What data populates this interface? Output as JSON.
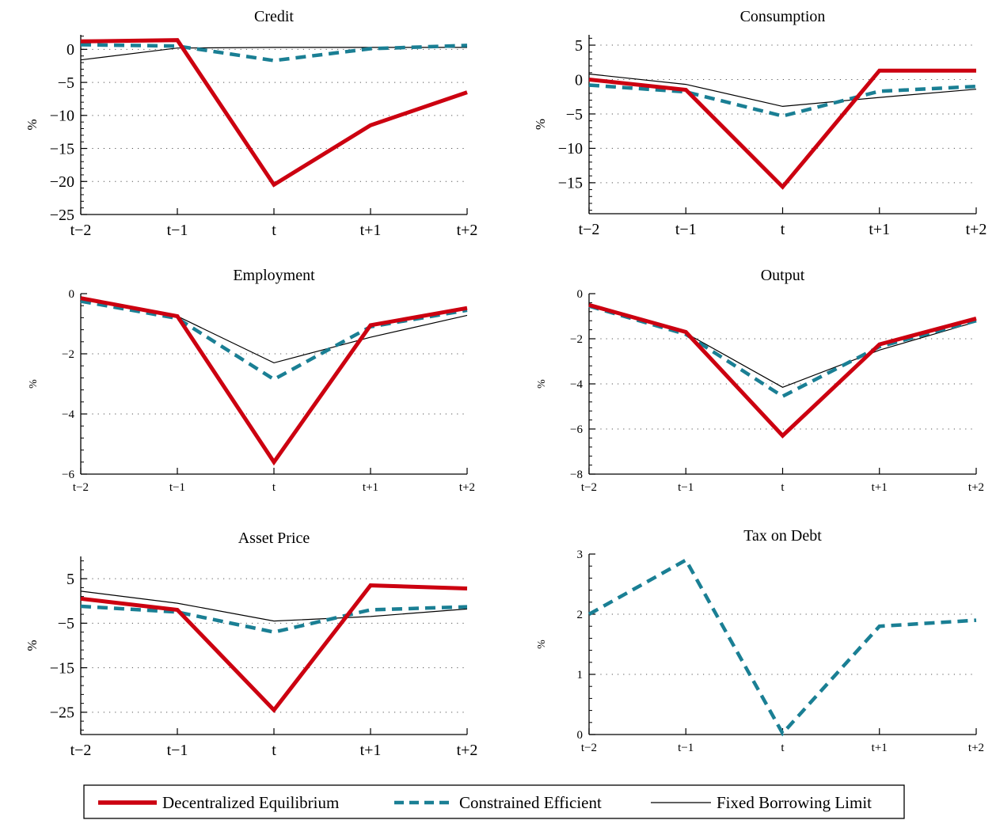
{
  "colors": {
    "decentralized": "#cc0010",
    "constrained": "#1a7f94",
    "fixed": "#000000",
    "grid": "#555555"
  },
  "legend": {
    "items": [
      {
        "label": "Decentralized Equilibrium",
        "series": "decentralized"
      },
      {
        "label": "Constrained Efficient",
        "series": "constrained"
      },
      {
        "label": "Fixed Borrowing Limit",
        "series": "fixed"
      }
    ]
  },
  "chart_data": [
    {
      "type": "line",
      "title": "Credit",
      "ylabel": "%",
      "categories": [
        "t−2",
        "t−1",
        "t",
        "t+1",
        "t+2"
      ],
      "ylim": [
        -25,
        2.2
      ],
      "yticks": [
        0,
        -5,
        -10,
        -15,
        -20,
        -25
      ],
      "yticklabels": [
        "0",
        "−5",
        "−10",
        "−15",
        "−20",
        "−25"
      ],
      "grid": "horizontal dotted",
      "series": [
        {
          "key": "decentralized",
          "values": [
            1.2,
            1.4,
            -20.5,
            -11.5,
            -6.5
          ]
        },
        {
          "key": "constrained",
          "values": [
            0.7,
            0.5,
            -1.7,
            0.1,
            0.6
          ]
        },
        {
          "key": "fixed",
          "values": [
            -1.6,
            0.2,
            0.3,
            0.3,
            0.3
          ]
        }
      ]
    },
    {
      "type": "line",
      "title": "Consumption",
      "ylabel": "%",
      "categories": [
        "t−2",
        "t−1",
        "t",
        "t+1",
        "t+2"
      ],
      "ylim": [
        -19.5,
        6.5
      ],
      "yticks": [
        5,
        0,
        -5,
        -10,
        -15
      ],
      "yticklabels": [
        "5",
        "0",
        "−5",
        "−10",
        "−15"
      ],
      "grid": "horizontal dotted",
      "series": [
        {
          "key": "decentralized",
          "values": [
            0,
            -1.5,
            -15.6,
            1.3,
            1.3
          ]
        },
        {
          "key": "constrained",
          "values": [
            -0.8,
            -1.8,
            -5.3,
            -1.7,
            -1.0
          ]
        },
        {
          "key": "fixed",
          "values": [
            0.8,
            -0.7,
            -3.9,
            -2.6,
            -1.4
          ]
        }
      ]
    },
    {
      "type": "line",
      "title": "Employment",
      "ylabel": "%",
      "categories": [
        "t−2",
        "t−1",
        "t",
        "t+1",
        "t+2"
      ],
      "ylim": [
        -6,
        0
      ],
      "yticks": [
        0,
        -2,
        -4,
        -6
      ],
      "yticklabels": [
        "0",
        "−2",
        "−4",
        "−6"
      ],
      "grid": "horizontal dotted",
      "series": [
        {
          "key": "decentralized",
          "values": [
            -0.15,
            -0.75,
            -5.6,
            -1.05,
            -0.48
          ]
        },
        {
          "key": "constrained",
          "values": [
            -0.25,
            -0.82,
            -2.85,
            -1.1,
            -0.55
          ]
        },
        {
          "key": "fixed",
          "values": [
            -0.2,
            -0.75,
            -2.3,
            -1.45,
            -0.72
          ]
        }
      ]
    },
    {
      "type": "line",
      "title": "Output",
      "ylabel": "%",
      "categories": [
        "t−2",
        "t−1",
        "t",
        "t+1",
        "t+2"
      ],
      "ylim": [
        -8,
        0
      ],
      "yticks": [
        0,
        -2,
        -4,
        -6,
        -8
      ],
      "yticklabels": [
        "0",
        "−2",
        "−4",
        "−6",
        "−8"
      ],
      "grid": "horizontal dotted",
      "series": [
        {
          "key": "decentralized",
          "values": [
            -0.5,
            -1.7,
            -6.3,
            -2.25,
            -1.1
          ]
        },
        {
          "key": "constrained",
          "values": [
            -0.55,
            -1.8,
            -4.55,
            -2.35,
            -1.2
          ]
        },
        {
          "key": "fixed",
          "values": [
            -0.5,
            -1.75,
            -4.15,
            -2.5,
            -1.25
          ]
        }
      ]
    },
    {
      "type": "line",
      "title": "Asset Price",
      "ylabel": "%",
      "categories": [
        "t−2",
        "t−1",
        "t",
        "t+1",
        "t+2"
      ],
      "ylim": [
        -30,
        10
      ],
      "yticks": [
        5,
        -5,
        -15,
        -25
      ],
      "yticklabels": [
        "5",
        "−5",
        "−15",
        "−25"
      ],
      "grid": "horizontal dotted",
      "series": [
        {
          "key": "decentralized",
          "values": [
            0.5,
            -2,
            -24.5,
            3.5,
            2.8
          ]
        },
        {
          "key": "constrained",
          "values": [
            -1.2,
            -2.5,
            -7,
            -2,
            -1.3
          ]
        },
        {
          "key": "fixed",
          "values": [
            2.2,
            -0.5,
            -4.5,
            -3.5,
            -1.8
          ]
        }
      ]
    },
    {
      "type": "line",
      "title": "Tax on Debt",
      "ylabel": "%",
      "categories": [
        "t−2",
        "t−1",
        "t",
        "t+1",
        "t+2"
      ],
      "ylim": [
        0,
        3
      ],
      "yticks": [
        3,
        2,
        1,
        0
      ],
      "yticklabels": [
        "3",
        "2",
        "1",
        "0"
      ],
      "grid": "horizontal dotted",
      "series": [
        {
          "key": "constrained",
          "values": [
            2.0,
            2.9,
            0.02,
            1.8,
            1.9
          ]
        }
      ]
    }
  ]
}
